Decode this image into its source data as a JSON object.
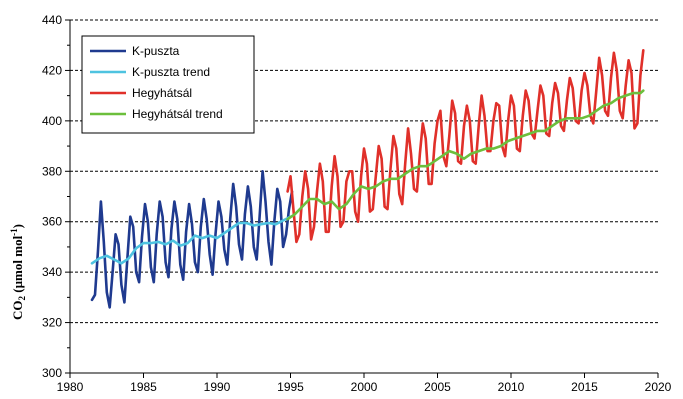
{
  "chart_data": {
    "type": "line",
    "title": "",
    "xlabel": "",
    "ylabel": {
      "main": "CO",
      "sub": "2",
      "rest": " (µmol mol",
      "sup": "-1",
      "end": ")"
    },
    "xlim": [
      1980,
      2020
    ],
    "ylim": [
      300,
      440
    ],
    "xticks": [
      1980,
      1985,
      1990,
      1995,
      2000,
      2005,
      2010,
      2015,
      2020
    ],
    "yticks": [
      300,
      320,
      340,
      360,
      380,
      400,
      420,
      440
    ],
    "grid": {
      "horizontal_dashed": true,
      "vertical": false
    },
    "legend": {
      "placement": "top-left",
      "frame": true
    },
    "colors": {
      "kpuszta": "#1f3a8f",
      "kpuszta_trend": "#4ec3e0",
      "hegyhatsal": "#e0302a",
      "hegyhatsal_trend": "#6cbf3c",
      "grid": "#000000",
      "axis": "#000000"
    },
    "series": [
      {
        "name": "K-puszta",
        "color": "#1f3a8f",
        "x": [
          1981.5,
          1981.7,
          1981.9,
          1982.1,
          1982.3,
          1982.5,
          1982.7,
          1982.9,
          1983.1,
          1983.3,
          1983.5,
          1983.7,
          1983.9,
          1984.1,
          1984.3,
          1984.5,
          1984.7,
          1984.9,
          1985.1,
          1985.3,
          1985.5,
          1985.7,
          1985.9,
          1986.1,
          1986.3,
          1986.5,
          1986.7,
          1986.9,
          1987.1,
          1987.3,
          1987.5,
          1987.7,
          1987.9,
          1988.1,
          1988.3,
          1988.5,
          1988.7,
          1988.9,
          1989.1,
          1989.3,
          1989.5,
          1989.7,
          1989.9,
          1990.1,
          1990.3,
          1990.5,
          1990.7,
          1990.9,
          1991.1,
          1991.3,
          1991.5,
          1991.7,
          1991.9,
          1992.1,
          1992.3,
          1992.5,
          1992.7,
          1992.9,
          1993.1,
          1993.3,
          1993.5,
          1993.7,
          1993.9,
          1994.1,
          1994.3,
          1994.5,
          1994.7,
          1994.9,
          1995.1
        ],
        "y": [
          329,
          331,
          348,
          368,
          352,
          332,
          326,
          340,
          355,
          351,
          335,
          328,
          345,
          362,
          358,
          340,
          336,
          354,
          367,
          360,
          342,
          336,
          355,
          368,
          362,
          344,
          338,
          357,
          368,
          361,
          343,
          337,
          356,
          367,
          359,
          344,
          340,
          358,
          369,
          361,
          347,
          339,
          355,
          368,
          362,
          349,
          343,
          361,
          375,
          366,
          351,
          345,
          363,
          374,
          366,
          350,
          345,
          362,
          380,
          368,
          352,
          343,
          360,
          373,
          368,
          350,
          355,
          365,
          372
        ]
      },
      {
        "name": "K-puszta trend",
        "color": "#4ec3e0",
        "x": [
          1981.5,
          1982.0,
          1982.5,
          1983.0,
          1983.5,
          1984.0,
          1984.5,
          1985.0,
          1985.5,
          1986.0,
          1986.5,
          1987.0,
          1987.5,
          1988.0,
          1988.5,
          1989.0,
          1989.5,
          1990.0,
          1990.5,
          1991.0,
          1991.5,
          1992.0,
          1992.5,
          1993.0,
          1993.5,
          1994.0,
          1994.5,
          1995.0
        ],
        "y": [
          343.5,
          345.5,
          346.5,
          345.0,
          343.5,
          345.5,
          349.5,
          351.5,
          351.5,
          352.0,
          351.0,
          352.5,
          350.5,
          351.5,
          354.5,
          353.5,
          354.5,
          353.5,
          355.5,
          357.5,
          359.5,
          359.5,
          358.5,
          359.0,
          359.5,
          359.0,
          360.5,
          362.0
        ]
      },
      {
        "name": "Hegyhátsál",
        "color": "#e0302a",
        "x": [
          1994.8,
          1995.0,
          1995.2,
          1995.4,
          1995.6,
          1995.8,
          1996.0,
          1996.2,
          1996.4,
          1996.6,
          1996.8,
          1997.0,
          1997.2,
          1997.4,
          1997.6,
          1997.8,
          1998.0,
          1998.2,
          1998.4,
          1998.6,
          1998.8,
          1999.0,
          1999.2,
          1999.4,
          1999.6,
          1999.8,
          2000.0,
          2000.2,
          2000.4,
          2000.6,
          2000.8,
          2001.0,
          2001.2,
          2001.4,
          2001.6,
          2001.8,
          2002.0,
          2002.2,
          2002.4,
          2002.6,
          2002.8,
          2003.0,
          2003.2,
          2003.4,
          2003.6,
          2003.8,
          2004.0,
          2004.2,
          2004.4,
          2004.6,
          2004.8,
          2005.0,
          2005.2,
          2005.4,
          2005.6,
          2005.8,
          2006.0,
          2006.2,
          2006.4,
          2006.6,
          2006.8,
          2007.0,
          2007.2,
          2007.4,
          2007.6,
          2007.8,
          2008.0,
          2008.2,
          2008.4,
          2008.6,
          2008.8,
          2009.0,
          2009.2,
          2009.4,
          2009.6,
          2009.8,
          2010.0,
          2010.2,
          2010.4,
          2010.6,
          2010.8,
          2011.0,
          2011.2,
          2011.4,
          2011.6,
          2011.8,
          2012.0,
          2012.2,
          2012.4,
          2012.6,
          2012.8,
          2013.0,
          2013.2,
          2013.4,
          2013.6,
          2013.8,
          2014.0,
          2014.2,
          2014.4,
          2014.6,
          2014.8,
          2015.0,
          2015.2,
          2015.4,
          2015.6,
          2015.8,
          2016.0,
          2016.2,
          2016.4,
          2016.6,
          2016.8,
          2017.0,
          2017.2,
          2017.4,
          2017.6,
          2017.8,
          2018.0,
          2018.2,
          2018.4,
          2018.6,
          2018.8,
          2019.0
        ],
        "y": [
          372,
          378,
          365,
          352,
          355,
          370,
          380,
          373,
          353,
          358,
          372,
          383,
          376,
          356,
          356,
          374,
          386,
          378,
          358,
          360,
          376,
          380,
          380,
          364,
          360,
          378,
          389,
          383,
          364,
          365,
          378,
          390,
          385,
          366,
          365,
          381,
          394,
          389,
          371,
          367,
          383,
          397,
          387,
          373,
          372,
          387,
          399,
          393,
          375,
          375,
          391,
          400,
          404,
          386,
          382,
          394,
          408,
          403,
          384,
          383,
          398,
          406,
          400,
          384,
          383,
          398,
          410,
          402,
          388,
          388,
          400,
          407,
          406,
          390,
          386,
          400,
          410,
          406,
          389,
          388,
          402,
          412,
          408,
          395,
          393,
          404,
          414,
          410,
          395,
          394,
          407,
          415,
          411,
          398,
          396,
          408,
          417,
          413,
          400,
          399,
          412,
          419,
          414,
          402,
          399,
          412,
          425,
          418,
          404,
          402,
          417,
          427,
          420,
          404,
          401,
          414,
          424,
          419,
          397,
          399,
          418,
          428
        ]
      },
      {
        "name": "Hegyhátsál trend",
        "color": "#6cbf3c",
        "x": [
          1994.8,
          1995.3,
          1995.8,
          1996.3,
          1996.8,
          1997.3,
          1997.8,
          1998.3,
          1998.8,
          1999.3,
          1999.8,
          2000.3,
          2000.8,
          2001.3,
          2001.8,
          2002.3,
          2002.8,
          2003.3,
          2003.8,
          2004.3,
          2004.8,
          2005.3,
          2005.8,
          2006.3,
          2006.8,
          2007.3,
          2007.8,
          2008.3,
          2008.8,
          2009.3,
          2009.8,
          2010.3,
          2010.8,
          2011.3,
          2011.8,
          2012.3,
          2012.8,
          2013.3,
          2013.8,
          2014.3,
          2014.8,
          2015.3,
          2015.8,
          2016.3,
          2016.8,
          2017.3,
          2017.8,
          2018.3,
          2018.8,
          2019.0
        ],
        "y": [
          361,
          363,
          366,
          369,
          369,
          367,
          368,
          365,
          367,
          371,
          374,
          373,
          374,
          376,
          377,
          377,
          379,
          381,
          382,
          382,
          384,
          386,
          388,
          387,
          385,
          387,
          388,
          389,
          389,
          390,
          392,
          393,
          394,
          395,
          396,
          396,
          398,
          400,
          401,
          401,
          401,
          402,
          404,
          406,
          407,
          409,
          410,
          411,
          411,
          412
        ]
      }
    ]
  }
}
